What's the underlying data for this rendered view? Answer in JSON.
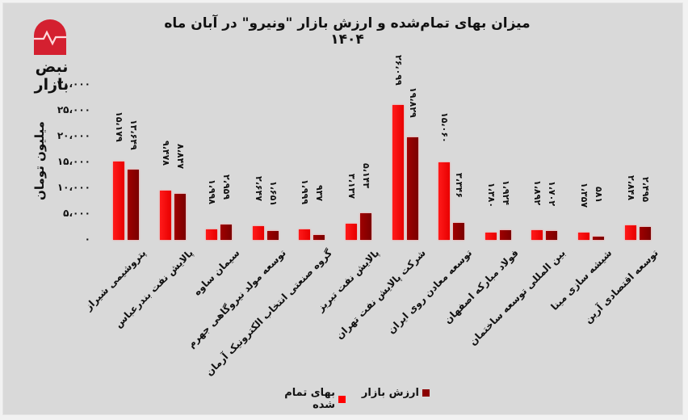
{
  "header": {
    "title": "میزان بهای تمام‌شده و ارزش بازار \"ونیرو\" در آبان ماه ۱۴۰۴",
    "brand": "نبض بازار",
    "logo_icon": "pulse-icon"
  },
  "colors": {
    "cost": "#ff0000",
    "market": "#8b0000",
    "logo": "#d42030",
    "background": "#d9d9d9"
  },
  "axis": {
    "ylabel": "میلیون تومان",
    "ticks": [
      "۳۰،۰۰۰",
      "۲۵،۰۰۰",
      "۲۰،۰۰۰",
      "۱۵،۰۰۰",
      "۱۰،۰۰۰",
      "۵،۰۰۰",
      "۰"
    ]
  },
  "legend": {
    "market": "ارزش بازار",
    "cost": "بهای تمام شده"
  },
  "labels": {
    "categories": [
      "پتروشیمی شیراز",
      "پالایش نفت بندرعباس",
      "سیمان ساوه",
      "توسعه مولد نیروگاهی جهرم",
      "گروه صنعتی انتخاب الکترونیک آرمان",
      "پالایش نفت تبریز",
      "شرکت پالایش نفت تهران",
      "توسعه معادن روی ایران",
      "فولاد مبارکه اصفهان",
      "بین المللی توسعه ساختمان",
      "شیشه سازی مینا",
      "توسعه اقتصادی آرین"
    ],
    "cost_text": [
      "۱۵،۱۷۹",
      "۹،۴۷۸",
      "۱،۹۹۸",
      "۲،۶۴۷",
      "۱،۹۹۹",
      "۳،۱۳۷",
      "۲۶،۰۹۹",
      "۱۵،۰۶۰",
      "۱،۳۸۰",
      "۱،۸۹۲",
      "۱،۳۵۷",
      "۲،۸۴۸"
    ],
    "market_text": [
      "۱۳،۶۴۹",
      "۸،۸۴۷",
      "۲،۹۵۹",
      "۱،۶۵۱",
      "۹۳۷",
      "۵،۱۴۳",
      "۱۹،۸۲۹",
      "۳،۳۴۶",
      "۱،۹۲۴",
      "۱،۷۰۲",
      "۵۸۱",
      "۲،۴۹۵"
    ]
  },
  "chart_data": {
    "type": "bar",
    "title": "میزان بهای تمام‌شده و ارزش بازار \"ونیرو\" در آبان ماه ۱۴۰۴",
    "xlabel": "",
    "ylabel": "میلیون تومان",
    "ylim": [
      0,
      30000
    ],
    "grid": false,
    "legend_position": "bottom",
    "categories": [
      "پتروشیمی شیراز",
      "پالایش نفت بندرعباس",
      "سیمان ساوه",
      "توسعه مولد نیروگاهی جهرم",
      "گروه صنعتی انتخاب الکترونیک آرمان",
      "پالایش نفت تبریز",
      "شرکت پالایش نفت تهران",
      "توسعه معادن روی ایران",
      "فولاد مبارکه اصفهان",
      "بین المللی توسعه ساختمان",
      "شیشه سازی مینا",
      "توسعه اقتصادی آرین"
    ],
    "series": [
      {
        "name": "بهای تمام شده",
        "color": "#ff0000",
        "values": [
          15179,
          9478,
          1998,
          2647,
          1999,
          3137,
          26099,
          15060,
          1380,
          1892,
          1357,
          2848
        ]
      },
      {
        "name": "ارزش بازار",
        "color": "#8b0000",
        "values": [
          13649,
          8847,
          2959,
          1651,
          937,
          5143,
          19829,
          3346,
          1924,
          1702,
          581,
          2495
        ]
      }
    ]
  }
}
